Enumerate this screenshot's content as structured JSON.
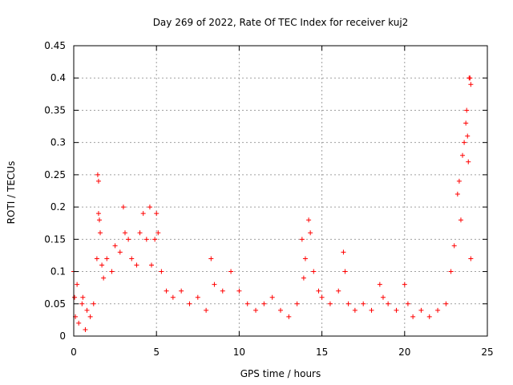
{
  "chart_data": {
    "type": "scatter",
    "title": "Day 269 of 2022, Rate Of TEC Index for receiver kuj2",
    "xlabel": "GPS time / hours",
    "ylabel": "ROTI / TECUs",
    "xlim": [
      0,
      25
    ],
    "ylim": [
      0,
      0.45
    ],
    "x_ticks": [
      "0",
      "5",
      "10",
      "15",
      "20",
      "25"
    ],
    "y_ticks": [
      "0",
      "0.05",
      "0.1",
      "0.15",
      "0.2",
      "0.25",
      "0.3",
      "0.35",
      "0.4",
      "0.45"
    ],
    "grid": true,
    "marker": "+",
    "color": "#ff0000",
    "series": [
      {
        "name": "ROTI",
        "points": [
          [
            0.0,
            0.1
          ],
          [
            0.05,
            0.06
          ],
          [
            0.1,
            0.03
          ],
          [
            0.2,
            0.08
          ],
          [
            0.3,
            0.02
          ],
          [
            0.5,
            0.05
          ],
          [
            0.55,
            0.06
          ],
          [
            0.7,
            0.01
          ],
          [
            0.8,
            0.04
          ],
          [
            1.0,
            0.03
          ],
          [
            1.2,
            0.05
          ],
          [
            1.4,
            0.12
          ],
          [
            1.45,
            0.25
          ],
          [
            1.5,
            0.24
          ],
          [
            1.5,
            0.19
          ],
          [
            1.55,
            0.18
          ],
          [
            1.6,
            0.16
          ],
          [
            1.7,
            0.11
          ],
          [
            1.8,
            0.09
          ],
          [
            2.0,
            0.12
          ],
          [
            2.3,
            0.1
          ],
          [
            2.5,
            0.14
          ],
          [
            2.8,
            0.13
          ],
          [
            3.0,
            0.2
          ],
          [
            3.1,
            0.16
          ],
          [
            3.3,
            0.15
          ],
          [
            3.5,
            0.12
          ],
          [
            3.8,
            0.11
          ],
          [
            4.0,
            0.16
          ],
          [
            4.2,
            0.19
          ],
          [
            4.4,
            0.15
          ],
          [
            4.6,
            0.2
          ],
          [
            4.7,
            0.11
          ],
          [
            4.9,
            0.15
          ],
          [
            5.0,
            0.19
          ],
          [
            5.1,
            0.16
          ],
          [
            5.3,
            0.1
          ],
          [
            5.6,
            0.07
          ],
          [
            6.0,
            0.06
          ],
          [
            6.5,
            0.07
          ],
          [
            7.0,
            0.05
          ],
          [
            7.5,
            0.06
          ],
          [
            8.0,
            0.04
          ],
          [
            8.3,
            0.12
          ],
          [
            8.5,
            0.08
          ],
          [
            9.0,
            0.07
          ],
          [
            9.5,
            0.1
          ],
          [
            10.0,
            0.07
          ],
          [
            10.5,
            0.05
          ],
          [
            11.0,
            0.04
          ],
          [
            11.5,
            0.05
          ],
          [
            12.0,
            0.06
          ],
          [
            12.5,
            0.04
          ],
          [
            13.0,
            0.03
          ],
          [
            13.5,
            0.05
          ],
          [
            13.8,
            0.15
          ],
          [
            13.9,
            0.09
          ],
          [
            14.0,
            0.12
          ],
          [
            14.2,
            0.18
          ],
          [
            14.3,
            0.16
          ],
          [
            14.5,
            0.1
          ],
          [
            14.8,
            0.07
          ],
          [
            15.0,
            0.06
          ],
          [
            15.5,
            0.05
          ],
          [
            16.0,
            0.07
          ],
          [
            16.3,
            0.13
          ],
          [
            16.4,
            0.1
          ],
          [
            16.6,
            0.05
          ],
          [
            17.0,
            0.04
          ],
          [
            17.5,
            0.05
          ],
          [
            18.0,
            0.04
          ],
          [
            18.5,
            0.08
          ],
          [
            18.7,
            0.06
          ],
          [
            19.0,
            0.05
          ],
          [
            19.5,
            0.04
          ],
          [
            20.0,
            0.08
          ],
          [
            20.2,
            0.05
          ],
          [
            20.5,
            0.03
          ],
          [
            21.0,
            0.04
          ],
          [
            21.5,
            0.03
          ],
          [
            22.0,
            0.04
          ],
          [
            22.5,
            0.05
          ],
          [
            22.8,
            0.1
          ],
          [
            23.0,
            0.14
          ],
          [
            23.2,
            0.22
          ],
          [
            23.3,
            0.24
          ],
          [
            23.4,
            0.18
          ],
          [
            23.5,
            0.28
          ],
          [
            23.6,
            0.3
          ],
          [
            23.7,
            0.33
          ],
          [
            23.75,
            0.35
          ],
          [
            23.8,
            0.31
          ],
          [
            23.85,
            0.27
          ],
          [
            23.9,
            0.4
          ],
          [
            23.95,
            0.4
          ],
          [
            24.0,
            0.39
          ],
          [
            24.0,
            0.12
          ]
        ]
      }
    ]
  }
}
